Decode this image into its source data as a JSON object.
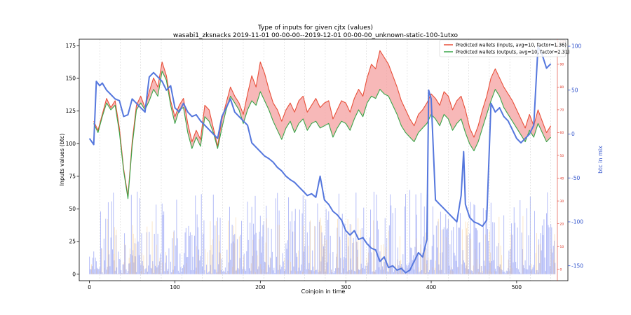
{
  "chart_data": {
    "type": "line",
    "title": "Type of inputs for given cjtx (values)",
    "subtitle": "wasabi1_zksnacks 2019-11-01 00-00-00--2019-12-01 00-00-00_unknown-static-100-1utxo",
    "xlabel": "Coinjoin in time",
    "ylabel": "Inputs values (btc)",
    "y2label": "btc in mix",
    "xlim": [
      -12,
      560
    ],
    "ylim": [
      -5,
      180
    ],
    "y2lim": [
      -167,
      108
    ],
    "y3lim": [
      -5,
      101
    ],
    "xticks": [
      0,
      100,
      200,
      300,
      400,
      500
    ],
    "yticks": [
      0,
      25,
      50,
      75,
      100,
      125,
      150,
      175
    ],
    "y2ticks": [
      -150,
      -100,
      -50,
      0,
      50,
      100
    ],
    "y3ticks": [
      0,
      10,
      20,
      30,
      40,
      50,
      60,
      70,
      80,
      90,
      100
    ],
    "grid": "vertical dashed lines",
    "legend_position": "top-right",
    "colors": {
      "inputs_line": "#e8503a",
      "outputs_line": "#3aa64a",
      "fill": "#f4a0a0",
      "btc_in_mix": "#5577dd",
      "bars_a": "#6b7cf0",
      "bars_b": "#f6c88a",
      "right_axis": "#3355cc",
      "third_axis": "#dd3322"
    },
    "series": [
      {
        "name": "Predicted wallets (inputs, avg=10, factor=1.36)",
        "axis": "y3",
        "x": [
          5,
          10,
          15,
          20,
          25,
          30,
          35,
          40,
          45,
          50,
          55,
          60,
          65,
          70,
          75,
          80,
          85,
          90,
          95,
          100,
          105,
          110,
          115,
          120,
          125,
          130,
          135,
          140,
          145,
          150,
          155,
          160,
          165,
          170,
          175,
          180,
          185,
          190,
          195,
          200,
          205,
          210,
          215,
          220,
          225,
          230,
          235,
          240,
          245,
          250,
          255,
          260,
          265,
          270,
          275,
          280,
          285,
          290,
          295,
          300,
          305,
          310,
          315,
          320,
          325,
          330,
          335,
          340,
          345,
          350,
          355,
          360,
          365,
          370,
          375,
          380,
          385,
          390,
          395,
          400,
          405,
          410,
          415,
          420,
          425,
          430,
          435,
          440,
          445,
          450,
          455,
          460,
          465,
          470,
          475,
          480,
          485,
          490,
          495,
          500,
          505,
          510,
          515,
          520,
          525,
          530,
          535,
          540
        ],
        "values": [
          65,
          61,
          68,
          75,
          71,
          74,
          62,
          44,
          32,
          56,
          72,
          76,
          71,
          78,
          84,
          80,
          91,
          85,
          74,
          67,
          72,
          75,
          64,
          56,
          61,
          57,
          72,
          70,
          62,
          54,
          66,
          73,
          80,
          76,
          73,
          68,
          77,
          85,
          80,
          91,
          86,
          79,
          73,
          70,
          65,
          70,
          73,
          69,
          74,
          76,
          69,
          72,
          75,
          71,
          73,
          74,
          66,
          70,
          74,
          73,
          69,
          75,
          79,
          76,
          84,
          90,
          88,
          96,
          93,
          90,
          85,
          80,
          74,
          70,
          66,
          63,
          68,
          70,
          73,
          77,
          75,
          72,
          78,
          76,
          70,
          74,
          76,
          70,
          62,
          58,
          63,
          70,
          76,
          84,
          88,
          84,
          80,
          77,
          74,
          70,
          66,
          62,
          68,
          63,
          70,
          65,
          60,
          63
        ]
      },
      {
        "name": "Predicted wallets (outputs, avg=10, factor=2.31)",
        "axis": "y3",
        "x": [
          5,
          10,
          15,
          20,
          25,
          30,
          35,
          40,
          45,
          50,
          55,
          60,
          65,
          70,
          75,
          80,
          85,
          90,
          95,
          100,
          105,
          110,
          115,
          120,
          125,
          130,
          135,
          140,
          145,
          150,
          155,
          160,
          165,
          170,
          175,
          180,
          185,
          190,
          195,
          200,
          205,
          210,
          215,
          220,
          225,
          230,
          235,
          240,
          245,
          250,
          255,
          260,
          265,
          270,
          275,
          280,
          285,
          290,
          295,
          300,
          305,
          310,
          315,
          320,
          325,
          330,
          335,
          340,
          345,
          350,
          355,
          360,
          365,
          370,
          375,
          380,
          385,
          390,
          395,
          400,
          405,
          410,
          415,
          420,
          425,
          430,
          435,
          440,
          445,
          450,
          455,
          460,
          465,
          470,
          475,
          480,
          485,
          490,
          495,
          500,
          505,
          510,
          515,
          520,
          525,
          530,
          535,
          540
        ],
        "values": [
          64,
          60,
          67,
          73,
          70,
          72,
          60,
          43,
          31,
          54,
          70,
          73,
          70,
          74,
          79,
          76,
          87,
          83,
          72,
          64,
          70,
          71,
          60,
          53,
          58,
          54,
          67,
          65,
          60,
          53,
          62,
          70,
          76,
          73,
          70,
          64,
          70,
          74,
          72,
          78,
          74,
          70,
          65,
          61,
          57,
          62,
          65,
          60,
          64,
          66,
          61,
          64,
          65,
          62,
          63,
          64,
          58,
          62,
          65,
          64,
          61,
          66,
          70,
          67,
          73,
          76,
          75,
          79,
          77,
          76,
          72,
          68,
          63,
          60,
          58,
          56,
          60,
          62,
          64,
          68,
          66,
          63,
          68,
          66,
          61,
          64,
          66,
          60,
          55,
          52,
          56,
          62,
          68,
          74,
          79,
          76,
          71,
          68,
          65,
          62,
          59,
          56,
          61,
          58,
          64,
          60,
          56,
          58
        ]
      },
      {
        "name": "btc in mix",
        "axis": "y2",
        "x": [
          0,
          5,
          8,
          12,
          15,
          20,
          25,
          30,
          35,
          40,
          45,
          50,
          55,
          60,
          65,
          70,
          75,
          80,
          85,
          90,
          95,
          100,
          105,
          110,
          115,
          120,
          125,
          130,
          135,
          140,
          145,
          150,
          155,
          160,
          165,
          170,
          175,
          180,
          185,
          190,
          195,
          200,
          205,
          210,
          215,
          220,
          225,
          230,
          235,
          240,
          245,
          250,
          255,
          260,
          265,
          270,
          275,
          280,
          285,
          290,
          295,
          300,
          305,
          310,
          315,
          320,
          325,
          330,
          335,
          340,
          345,
          350,
          355,
          360,
          365,
          370,
          375,
          380,
          385,
          390,
          395,
          397,
          400,
          405,
          410,
          415,
          420,
          425,
          430,
          435,
          438,
          440,
          445,
          450,
          455,
          460,
          465,
          470,
          475,
          480,
          485,
          490,
          495,
          500,
          505,
          510,
          515,
          520,
          525,
          530,
          535,
          540
        ],
        "values": [
          -5,
          -12,
          60,
          55,
          58,
          50,
          45,
          40,
          38,
          20,
          22,
          40,
          35,
          30,
          25,
          65,
          70,
          65,
          60,
          50,
          55,
          30,
          25,
          35,
          25,
          20,
          22,
          15,
          10,
          5,
          0,
          -5,
          20,
          30,
          40,
          25,
          20,
          15,
          10,
          -10,
          -15,
          -20,
          -25,
          -28,
          -32,
          -38,
          -42,
          -48,
          -52,
          -55,
          -60,
          -65,
          -70,
          -68,
          -72,
          -48,
          -75,
          -80,
          -88,
          -92,
          -98,
          -110,
          -115,
          -110,
          -120,
          -118,
          -125,
          -130,
          -132,
          -145,
          -140,
          -152,
          -150,
          -155,
          -153,
          -158,
          -155,
          -145,
          -135,
          -140,
          -120,
          50,
          40,
          -75,
          -80,
          -85,
          -90,
          -95,
          -100,
          -70,
          -20,
          -80,
          -95,
          -100,
          -102,
          -105,
          -98,
          35,
          25,
          30,
          20,
          15,
          5,
          -5,
          -10,
          -5,
          0,
          10,
          100,
          90,
          75,
          80
        ]
      }
    ]
  }
}
